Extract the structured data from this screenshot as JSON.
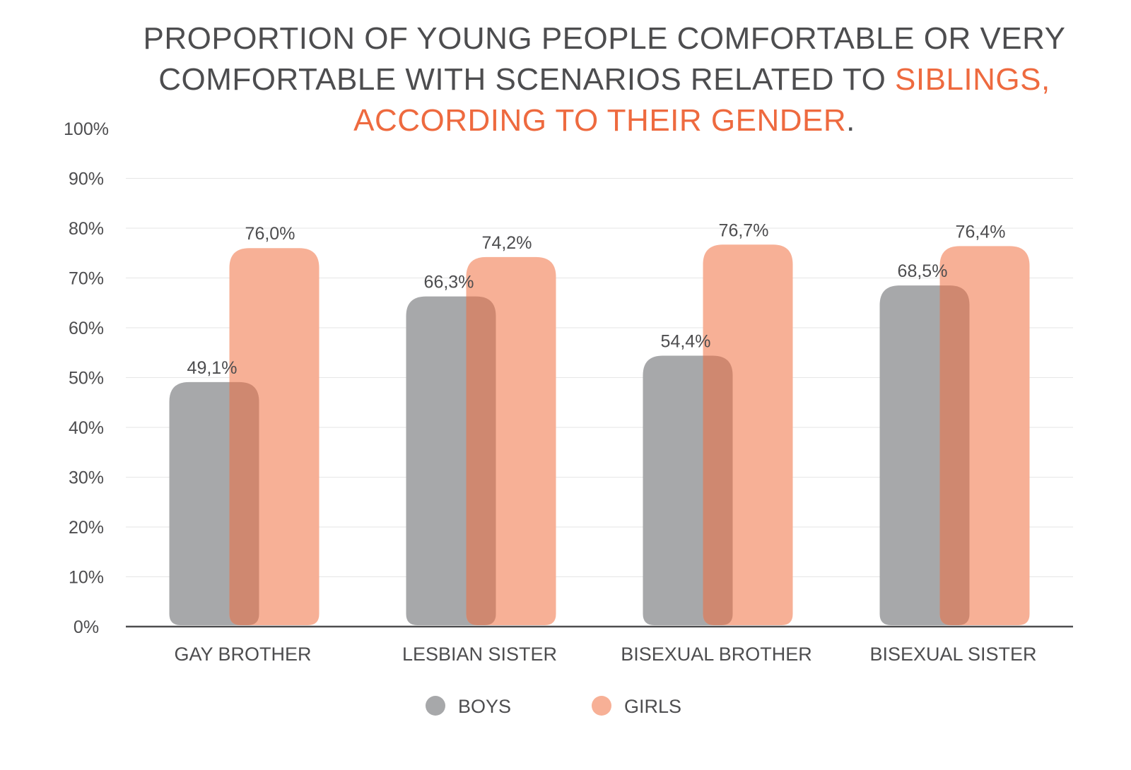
{
  "title": {
    "line1": "PROPORTION OF YOUNG PEOPLE COMFORTABLE OR VERY",
    "line2_plain": "COMFORTABLE WITH SCENARIOS RELATED TO ",
    "line2_hl": "SIBLINGS,",
    "line3_hl": "ACCORDING TO THEIR GENDER",
    "line3_end": "."
  },
  "colors": {
    "text": "#4d4d4f",
    "highlight": "#ee6a3f",
    "boys": "#a7a8aa",
    "girls": "#f7b096",
    "overlap": "#cf8870",
    "grid": "#e6e6e6",
    "axis": "#4d4d4f"
  },
  "chart_data": {
    "type": "bar",
    "categories": [
      "GAY BROTHER",
      "LESBIAN SISTER",
      "BISEXUAL BROTHER",
      "BISEXUAL SISTER"
    ],
    "series": [
      {
        "name": "BOYS",
        "values": [
          49.1,
          66.3,
          54.4,
          68.5
        ],
        "labels": [
          "49,1%",
          "66,3%",
          "54,4%",
          "68,5%"
        ]
      },
      {
        "name": "GIRLS",
        "values": [
          76.0,
          74.2,
          76.7,
          76.4
        ],
        "labels": [
          "76,0%",
          "74,2%",
          "76,7%",
          "76,4%"
        ]
      }
    ],
    "ylim": [
      0,
      100
    ],
    "yticks": [
      0,
      10,
      20,
      30,
      40,
      50,
      60,
      70,
      80,
      90,
      100
    ],
    "ytick_labels": [
      "0%",
      "10%",
      "20%",
      "30%",
      "40%",
      "50%",
      "60%",
      "70%",
      "80%",
      "90%",
      "100%"
    ],
    "grid": true,
    "legend": "bottom-center",
    "xlabel": "",
    "ylabel": ""
  }
}
